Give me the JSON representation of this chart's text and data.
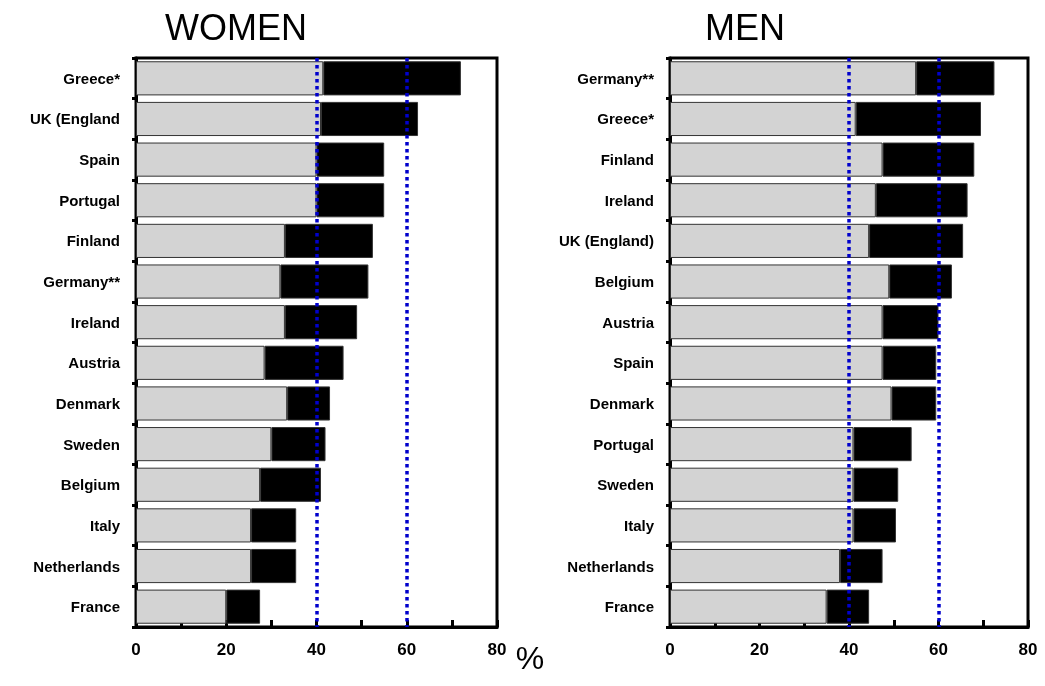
{
  "chart_data": [
    {
      "type": "bar",
      "title": "WOMEN",
      "xlabel": "%",
      "orientation": "horizontal",
      "stacked": true,
      "categories": [
        "Greece*",
        "UK (England",
        "Spain",
        "Portugal",
        "Finland",
        "Germany**",
        "Ireland",
        "Austria",
        "Denmark",
        "Sweden",
        "Belgium",
        "Italy",
        "Netherlands",
        "France"
      ],
      "series": [
        {
          "color": "#d3d3d3",
          "values": [
            41.5,
            41,
            40,
            40,
            33,
            32,
            33,
            28.5,
            33.5,
            30,
            27.5,
            25.5,
            25.5,
            20
          ]
        },
        {
          "color": "#000000",
          "values": [
            30.5,
            21.5,
            15,
            15,
            19.5,
            19.5,
            16,
            17.5,
            9.5,
            12,
            13.5,
            10,
            10,
            7.5
          ]
        }
      ],
      "xlim": [
        0,
        80
      ],
      "xticks": [
        0,
        {
          "value": 10,
          "label": null
        },
        20,
        {
          "value": 30,
          "label": null
        },
        40,
        {
          "value": 50,
          "label": null
        },
        60,
        {
          "value": 70,
          "label": null
        },
        80
      ],
      "ref_lines": [
        {
          "axis": "x",
          "value": 40,
          "color": "#0000cc",
          "line_style": "dotted"
        },
        {
          "axis": "x",
          "value": 60,
          "color": "#0000cc",
          "line_style": "dotted"
        }
      ]
    },
    {
      "type": "bar",
      "title": "MEN",
      "orientation": "horizontal",
      "stacked": true,
      "categories": [
        "Germany**",
        "Greece*",
        "Finland",
        "Ireland",
        "UK (England)",
        "Belgium",
        "Austria",
        "Spain",
        "Denmark",
        "Portugal",
        "Sweden",
        "Italy",
        "Netherlands",
        "France"
      ],
      "series": [
        {
          "color": "#d3d3d3",
          "values": [
            55,
            41.5,
            47.5,
            46,
            44.5,
            49,
            47.5,
            47.5,
            49.5,
            41,
            41,
            41,
            38,
            35
          ]
        },
        {
          "color": "#000000",
          "values": [
            17.5,
            28,
            20.5,
            20.5,
            21,
            14,
            12.5,
            12,
            10,
            13,
            10,
            9.5,
            9.5,
            9.5
          ]
        }
      ],
      "xlim": [
        0,
        80
      ],
      "xticks": [
        0,
        {
          "value": 10,
          "label": null
        },
        20,
        {
          "value": 30,
          "label": null
        },
        40,
        {
          "value": 50,
          "label": null
        },
        60,
        {
          "value": 70,
          "label": null
        },
        80
      ],
      "ref_lines": [
        {
          "axis": "x",
          "value": 40,
          "color": "#0000cc",
          "line_style": "dotted"
        },
        {
          "axis": "x",
          "value": 60,
          "color": "#0000cc",
          "line_style": "dotted"
        }
      ]
    }
  ]
}
